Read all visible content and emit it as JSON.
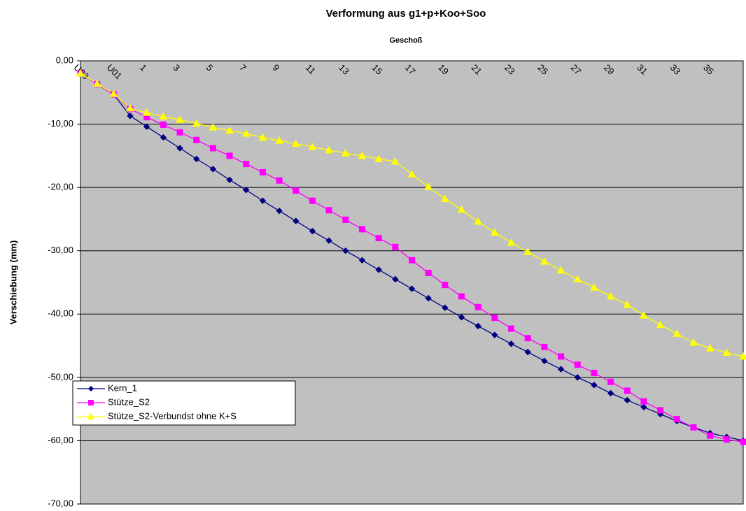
{
  "chart_data": {
    "type": "line",
    "title": "Verformung aus g1+p+Koo+Soo",
    "subtitle": "Geschoß",
    "y_label": "Verschiebung (mm)",
    "categories": [
      "U03",
      null,
      "U01",
      null,
      "1",
      null,
      "3",
      null,
      "5",
      null,
      "7",
      null,
      "9",
      null,
      "11",
      null,
      "13",
      null,
      "15",
      null,
      "17",
      null,
      "19",
      null,
      "21",
      null,
      "23",
      null,
      "25",
      null,
      "27",
      null,
      "29",
      null,
      "31",
      null,
      "33",
      null,
      "35",
      null,
      null
    ],
    "series": [
      {
        "name": "Kern_1",
        "color": "#000080",
        "marker": "diamond",
        "values": [
          -2.0,
          -3.7,
          -5.3,
          -8.7,
          -10.4,
          -12.1,
          -13.8,
          -15.5,
          -17.1,
          -18.8,
          -20.4,
          -22.1,
          -23.7,
          -25.3,
          -26.9,
          -28.4,
          -30.0,
          -31.5,
          -33.0,
          -34.5,
          -36.0,
          -37.5,
          -39.0,
          -40.5,
          -41.9,
          -43.3,
          -44.7,
          -46.0,
          -47.4,
          -48.7,
          -50.0,
          -51.2,
          -52.5,
          -53.6,
          -54.7,
          -55.8,
          -56.9,
          -57.9,
          -58.8,
          -59.4,
          -60.0
        ]
      },
      {
        "name": "Stütze_S2",
        "color": "#ff00ff",
        "marker": "square",
        "values": [
          -2.0,
          -3.7,
          -5.3,
          -7.6,
          -8.9,
          -10.1,
          -11.3,
          -12.5,
          -13.8,
          -15.0,
          -16.3,
          -17.6,
          -18.9,
          -20.5,
          -22.1,
          -23.6,
          -25.1,
          -26.6,
          -28.0,
          -29.4,
          -31.5,
          -33.5,
          -35.4,
          -37.2,
          -38.9,
          -40.6,
          -42.3,
          -43.8,
          -45.2,
          -46.7,
          -48.0,
          -49.3,
          -50.7,
          -52.1,
          -53.8,
          -55.2,
          -56.6,
          -57.9,
          -59.2,
          -59.8,
          -60.2
        ]
      },
      {
        "name": "Stütze_S2-Verbundst ohne K+S",
        "color": "#ffff00",
        "marker": "triangle",
        "values": [
          -2.0,
          -3.6,
          -5.2,
          -7.5,
          -8.2,
          -8.8,
          -9.3,
          -9.9,
          -10.5,
          -11.0,
          -11.5,
          -12.1,
          -12.6,
          -13.1,
          -13.6,
          -14.1,
          -14.6,
          -15.0,
          -15.5,
          -15.9,
          -17.9,
          -19.9,
          -21.8,
          -23.5,
          -25.4,
          -27.1,
          -28.7,
          -30.2,
          -31.7,
          -33.1,
          -34.5,
          -35.8,
          -37.2,
          -38.5,
          -40.2,
          -41.7,
          -43.1,
          -44.5,
          -45.4,
          -46.1,
          -46.7
        ]
      }
    ],
    "ylim": [
      -70,
      0
    ],
    "yticks": [
      {
        "value": -70,
        "label": "-70,00"
      },
      {
        "value": -60,
        "label": "-60,00"
      },
      {
        "value": -50,
        "label": "-50,00"
      },
      {
        "value": -40,
        "label": "-40,00"
      },
      {
        "value": -30,
        "label": "-30,00"
      },
      {
        "value": -20,
        "label": "-20,00"
      },
      {
        "value": -10,
        "label": "-10,00"
      },
      {
        "value": 0,
        "label": "0,00"
      }
    ],
    "grid": true,
    "legend": "lower left",
    "plot_background": "#c0c0c0"
  }
}
